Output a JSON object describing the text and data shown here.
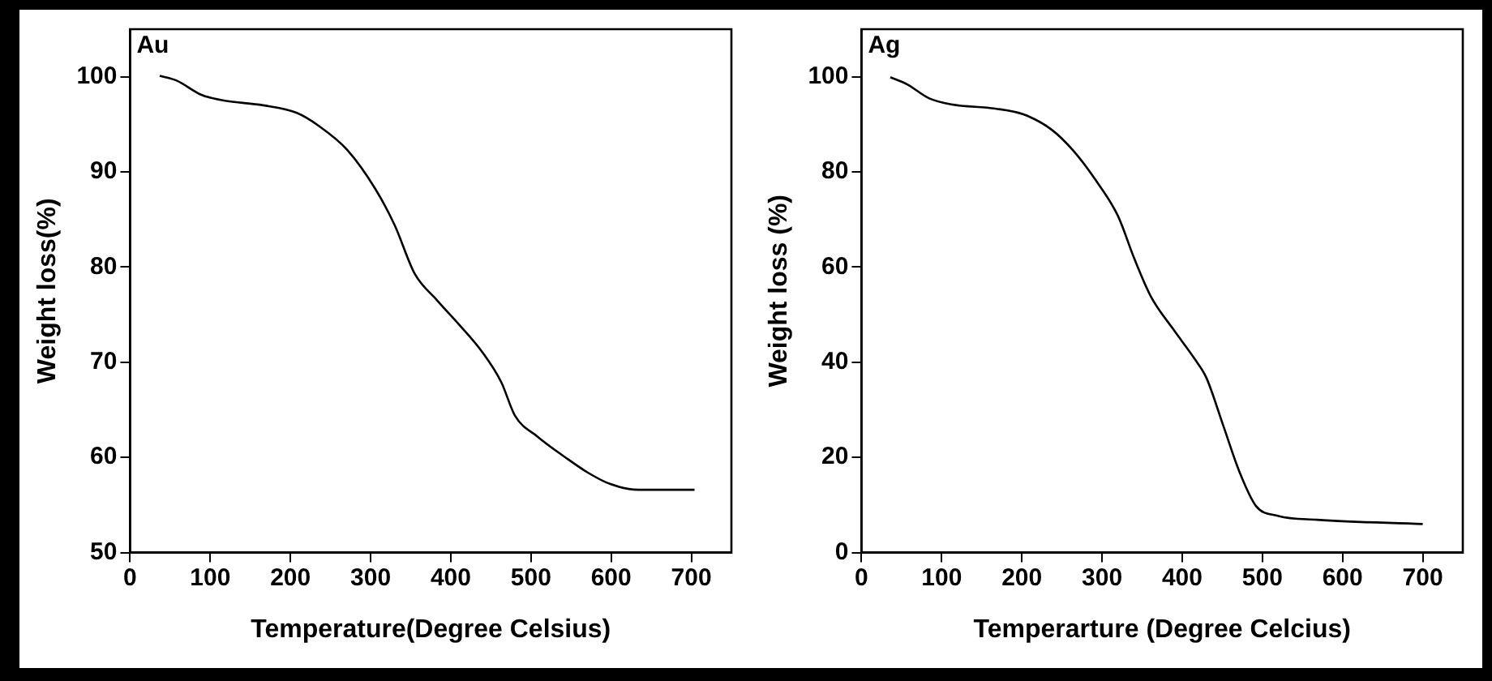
{
  "chart_data": [
    {
      "type": "line",
      "xlabel": "Temperature(Degree Celsius)",
      "ylabel": "Weight loss(%)",
      "annotations": [
        "Au"
      ],
      "xlim": [
        0,
        750
      ],
      "xticks": [
        0,
        100,
        200,
        300,
        400,
        500,
        600,
        700
      ],
      "ylim": [
        50,
        105
      ],
      "yticks": [
        50,
        60,
        70,
        80,
        90,
        100
      ],
      "grid": false,
      "legend": false,
      "marker": "none",
      "series": [
        {
          "color": "#000000",
          "x": [
            37,
            58,
            89,
            117,
            166,
            208,
            236,
            271,
            306,
            330,
            355,
            383,
            411,
            439,
            463,
            480,
            508,
            543,
            571,
            599,
            634,
            704
          ],
          "values": [
            100.1,
            99.6,
            98.1,
            97.5,
            97.0,
            96.2,
            94.8,
            92.3,
            88.2,
            84.4,
            79.3,
            76.5,
            73.9,
            71.1,
            67.9,
            64.4,
            62.2,
            60.0,
            58.4,
            57.2,
            56.6,
            56.6
          ]
        }
      ]
    },
    {
      "type": "line",
      "xlabel": "Temperarture (Degree Celcius)",
      "ylabel": "Weight loss (%)",
      "annotations": [
        "Ag"
      ],
      "xlim": [
        0,
        750
      ],
      "xticks": [
        0,
        100,
        200,
        300,
        400,
        500,
        600,
        700
      ],
      "ylim": [
        0,
        110
      ],
      "yticks": [
        0,
        20,
        40,
        60,
        80,
        100
      ],
      "grid": false,
      "legend": false,
      "marker": "none",
      "series": [
        {
          "color": "#000000",
          "x": [
            36,
            57,
            84,
            112,
            167,
            202,
            237,
            264,
            292,
            320,
            340,
            361,
            389,
            416,
            430,
            451,
            472,
            492,
            520,
            568,
            700
          ],
          "values": [
            99.9,
            98.4,
            95.5,
            94.2,
            93.3,
            92.1,
            88.9,
            84.5,
            78.3,
            70.7,
            61.9,
            53.8,
            46.9,
            40.6,
            36.8,
            26.8,
            16.7,
            9.8,
            7.7,
            6.9,
            6.0
          ]
        }
      ]
    }
  ]
}
